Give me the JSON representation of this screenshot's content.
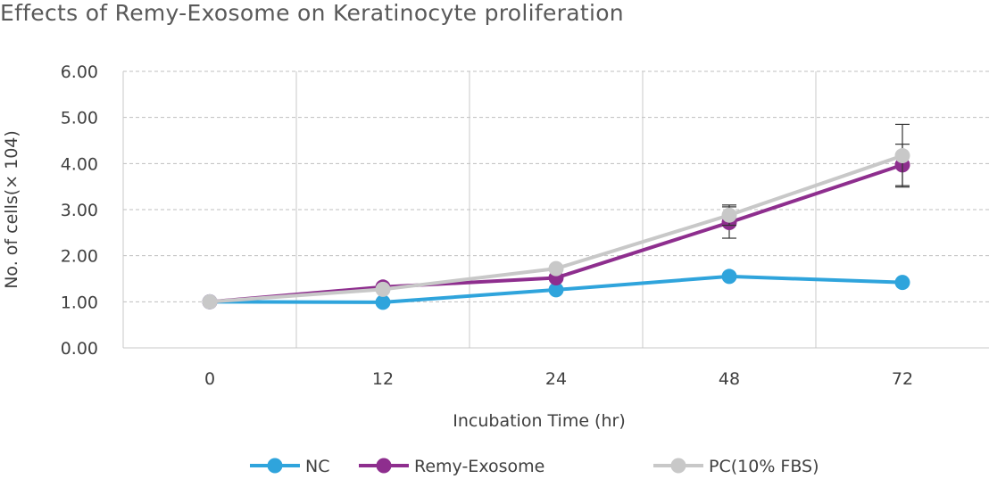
{
  "chart_data": {
    "type": "line",
    "title": "Effects of Remy-Exosome on Keratinocyte proliferation",
    "xlabel": "Incubation Time (hr)",
    "ylabel": "No.  of  cells(× 104)",
    "categories": [
      "0",
      "12",
      "24",
      "48",
      "72"
    ],
    "yticks": [
      "0.00",
      "1.00",
      "2.00",
      "3.00",
      "4.00",
      "5.00",
      "6.00"
    ],
    "ylim": [
      0,
      6
    ],
    "grid": "vertical-solid-between-categories, horizontal-dashed",
    "legend_position": "bottom",
    "series": [
      {
        "name": "NC",
        "color": "#2fa4dc",
        "values": [
          1.0,
          0.99,
          1.26,
          1.55,
          1.42
        ]
      },
      {
        "name": "Remy-Exosome",
        "color": "#8e2e8e",
        "values": [
          1.0,
          1.32,
          1.52,
          2.72,
          3.97
        ],
        "error": [
          0,
          0,
          0,
          0.34,
          0.45
        ]
      },
      {
        "name": "PC(10% FBS)",
        "color": "#c8c8c8",
        "values": [
          1.0,
          1.27,
          1.72,
          2.88,
          4.17
        ],
        "error": [
          0,
          0,
          0,
          0.22,
          0.68
        ]
      }
    ]
  }
}
